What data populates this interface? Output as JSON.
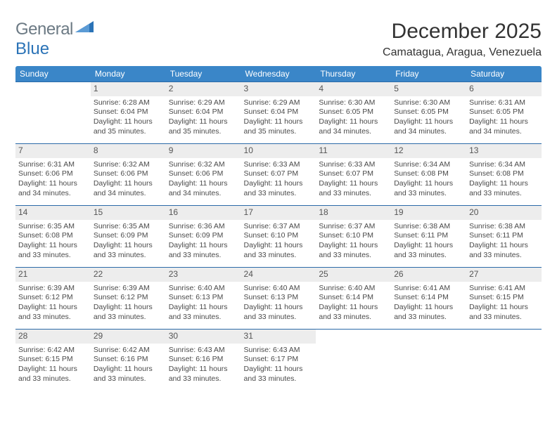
{
  "logo": {
    "text1": "General",
    "text2": "Blue"
  },
  "title": "December 2025",
  "location": "Camatagua, Aragua, Venezuela",
  "colors": {
    "header_bg": "#3a86c8",
    "header_text": "#ffffff",
    "row_border": "#2b6aa8",
    "daynum_bg": "#ededed",
    "body_text": "#4a4a4a",
    "logo_gray": "#6c7a84",
    "logo_blue": "#2b73b7",
    "page_bg": "#ffffff"
  },
  "typography": {
    "title_fontsize": 30,
    "location_fontsize": 16,
    "header_fontsize": 12,
    "cell_fontsize": 10.5,
    "daynum_fontsize": 12
  },
  "weekdays": [
    "Sunday",
    "Monday",
    "Tuesday",
    "Wednesday",
    "Thursday",
    "Friday",
    "Saturday"
  ],
  "weeks": [
    [
      {
        "day": "",
        "lines": []
      },
      {
        "day": "1",
        "lines": [
          "Sunrise: 6:28 AM",
          "Sunset: 6:04 PM",
          "Daylight: 11 hours",
          "and 35 minutes."
        ]
      },
      {
        "day": "2",
        "lines": [
          "Sunrise: 6:29 AM",
          "Sunset: 6:04 PM",
          "Daylight: 11 hours",
          "and 35 minutes."
        ]
      },
      {
        "day": "3",
        "lines": [
          "Sunrise: 6:29 AM",
          "Sunset: 6:04 PM",
          "Daylight: 11 hours",
          "and 35 minutes."
        ]
      },
      {
        "day": "4",
        "lines": [
          "Sunrise: 6:30 AM",
          "Sunset: 6:05 PM",
          "Daylight: 11 hours",
          "and 34 minutes."
        ]
      },
      {
        "day": "5",
        "lines": [
          "Sunrise: 6:30 AM",
          "Sunset: 6:05 PM",
          "Daylight: 11 hours",
          "and 34 minutes."
        ]
      },
      {
        "day": "6",
        "lines": [
          "Sunrise: 6:31 AM",
          "Sunset: 6:05 PM",
          "Daylight: 11 hours",
          "and 34 minutes."
        ]
      }
    ],
    [
      {
        "day": "7",
        "lines": [
          "Sunrise: 6:31 AM",
          "Sunset: 6:06 PM",
          "Daylight: 11 hours",
          "and 34 minutes."
        ]
      },
      {
        "day": "8",
        "lines": [
          "Sunrise: 6:32 AM",
          "Sunset: 6:06 PM",
          "Daylight: 11 hours",
          "and 34 minutes."
        ]
      },
      {
        "day": "9",
        "lines": [
          "Sunrise: 6:32 AM",
          "Sunset: 6:06 PM",
          "Daylight: 11 hours",
          "and 34 minutes."
        ]
      },
      {
        "day": "10",
        "lines": [
          "Sunrise: 6:33 AM",
          "Sunset: 6:07 PM",
          "Daylight: 11 hours",
          "and 33 minutes."
        ]
      },
      {
        "day": "11",
        "lines": [
          "Sunrise: 6:33 AM",
          "Sunset: 6:07 PM",
          "Daylight: 11 hours",
          "and 33 minutes."
        ]
      },
      {
        "day": "12",
        "lines": [
          "Sunrise: 6:34 AM",
          "Sunset: 6:08 PM",
          "Daylight: 11 hours",
          "and 33 minutes."
        ]
      },
      {
        "day": "13",
        "lines": [
          "Sunrise: 6:34 AM",
          "Sunset: 6:08 PM",
          "Daylight: 11 hours",
          "and 33 minutes."
        ]
      }
    ],
    [
      {
        "day": "14",
        "lines": [
          "Sunrise: 6:35 AM",
          "Sunset: 6:08 PM",
          "Daylight: 11 hours",
          "and 33 minutes."
        ]
      },
      {
        "day": "15",
        "lines": [
          "Sunrise: 6:35 AM",
          "Sunset: 6:09 PM",
          "Daylight: 11 hours",
          "and 33 minutes."
        ]
      },
      {
        "day": "16",
        "lines": [
          "Sunrise: 6:36 AM",
          "Sunset: 6:09 PM",
          "Daylight: 11 hours",
          "and 33 minutes."
        ]
      },
      {
        "day": "17",
        "lines": [
          "Sunrise: 6:37 AM",
          "Sunset: 6:10 PM",
          "Daylight: 11 hours",
          "and 33 minutes."
        ]
      },
      {
        "day": "18",
        "lines": [
          "Sunrise: 6:37 AM",
          "Sunset: 6:10 PM",
          "Daylight: 11 hours",
          "and 33 minutes."
        ]
      },
      {
        "day": "19",
        "lines": [
          "Sunrise: 6:38 AM",
          "Sunset: 6:11 PM",
          "Daylight: 11 hours",
          "and 33 minutes."
        ]
      },
      {
        "day": "20",
        "lines": [
          "Sunrise: 6:38 AM",
          "Sunset: 6:11 PM",
          "Daylight: 11 hours",
          "and 33 minutes."
        ]
      }
    ],
    [
      {
        "day": "21",
        "lines": [
          "Sunrise: 6:39 AM",
          "Sunset: 6:12 PM",
          "Daylight: 11 hours",
          "and 33 minutes."
        ]
      },
      {
        "day": "22",
        "lines": [
          "Sunrise: 6:39 AM",
          "Sunset: 6:12 PM",
          "Daylight: 11 hours",
          "and 33 minutes."
        ]
      },
      {
        "day": "23",
        "lines": [
          "Sunrise: 6:40 AM",
          "Sunset: 6:13 PM",
          "Daylight: 11 hours",
          "and 33 minutes."
        ]
      },
      {
        "day": "24",
        "lines": [
          "Sunrise: 6:40 AM",
          "Sunset: 6:13 PM",
          "Daylight: 11 hours",
          "and 33 minutes."
        ]
      },
      {
        "day": "25",
        "lines": [
          "Sunrise: 6:40 AM",
          "Sunset: 6:14 PM",
          "Daylight: 11 hours",
          "and 33 minutes."
        ]
      },
      {
        "day": "26",
        "lines": [
          "Sunrise: 6:41 AM",
          "Sunset: 6:14 PM",
          "Daylight: 11 hours",
          "and 33 minutes."
        ]
      },
      {
        "day": "27",
        "lines": [
          "Sunrise: 6:41 AM",
          "Sunset: 6:15 PM",
          "Daylight: 11 hours",
          "and 33 minutes."
        ]
      }
    ],
    [
      {
        "day": "28",
        "lines": [
          "Sunrise: 6:42 AM",
          "Sunset: 6:15 PM",
          "Daylight: 11 hours",
          "and 33 minutes."
        ]
      },
      {
        "day": "29",
        "lines": [
          "Sunrise: 6:42 AM",
          "Sunset: 6:16 PM",
          "Daylight: 11 hours",
          "and 33 minutes."
        ]
      },
      {
        "day": "30",
        "lines": [
          "Sunrise: 6:43 AM",
          "Sunset: 6:16 PM",
          "Daylight: 11 hours",
          "and 33 minutes."
        ]
      },
      {
        "day": "31",
        "lines": [
          "Sunrise: 6:43 AM",
          "Sunset: 6:17 PM",
          "Daylight: 11 hours",
          "and 33 minutes."
        ]
      },
      {
        "day": "",
        "lines": []
      },
      {
        "day": "",
        "lines": []
      },
      {
        "day": "",
        "lines": []
      }
    ]
  ]
}
